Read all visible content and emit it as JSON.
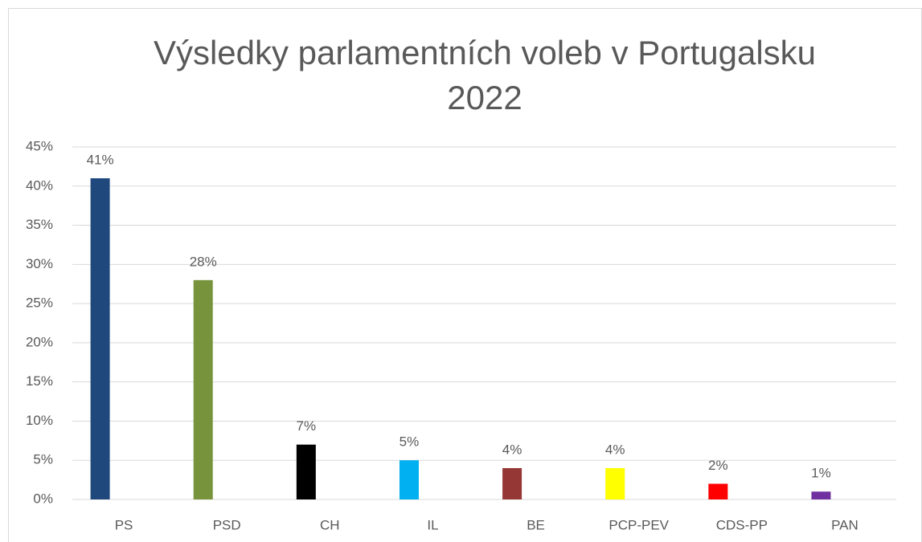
{
  "chart_data": {
    "type": "bar",
    "title": "Výsledky parlamentních voleb v Portugalsku 2022",
    "categories": [
      "PS",
      "PSD",
      "CH",
      "IL",
      "BE",
      "PCP-PEV",
      "CDS-PP",
      "PAN"
    ],
    "values": [
      41,
      28,
      7,
      5,
      4,
      4,
      2,
      1
    ],
    "value_labels": [
      "41%",
      "28%",
      "7%",
      "5%",
      "4%",
      "4%",
      "2%",
      "1%"
    ],
    "colors": [
      "#1f497d",
      "#77933c",
      "#000000",
      "#00b0f0",
      "#953735",
      "#ffff00",
      "#ff0000",
      "#7030a0"
    ],
    "ylim": [
      0,
      45
    ],
    "yticks": [
      {
        "value": 0,
        "label": "0%"
      },
      {
        "value": 5,
        "label": "5%"
      },
      {
        "value": 10,
        "label": "10%"
      },
      {
        "value": 15,
        "label": "15%"
      },
      {
        "value": 20,
        "label": "20%"
      },
      {
        "value": 25,
        "label": "25%"
      },
      {
        "value": 30,
        "label": "30%"
      },
      {
        "value": 35,
        "label": "35%"
      },
      {
        "value": 40,
        "label": "40%"
      },
      {
        "value": 45,
        "label": "45%"
      }
    ],
    "grid": true
  }
}
